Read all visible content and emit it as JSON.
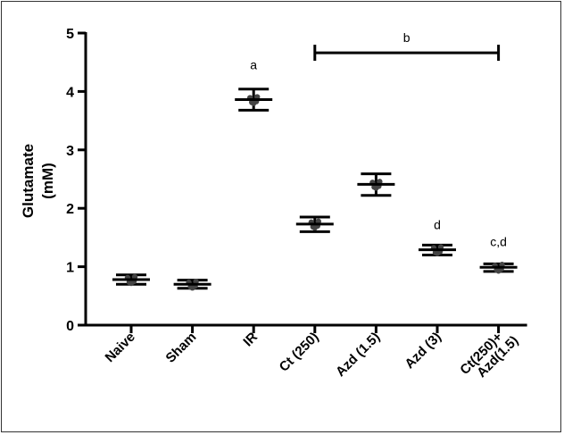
{
  "chart_data": {
    "type": "scatter",
    "title": "",
    "ylabel_lines": [
      "Glutamate",
      "(mM)"
    ],
    "xlabel": "",
    "ylim": [
      0,
      5
    ],
    "yticks": [
      0,
      1,
      2,
      3,
      4,
      5
    ],
    "grid": false,
    "legend": "none",
    "categories": [
      [
        "Naive"
      ],
      [
        "Sham"
      ],
      [
        "IR"
      ],
      [
        "Ct (250)"
      ],
      [
        "Azd (1.5)"
      ],
      [
        "Azd (3)"
      ],
      [
        "Ct(250)+",
        "Azd(1.5)"
      ]
    ],
    "series": [
      {
        "mean": [
          0.78,
          0.7,
          3.86,
          1.73,
          2.41,
          1.29,
          0.99
        ],
        "err_low": [
          0.7,
          0.63,
          3.68,
          1.6,
          2.22,
          1.2,
          0.92
        ],
        "err_high": [
          0.86,
          0.77,
          4.04,
          1.85,
          2.59,
          1.37,
          1.05
        ]
      }
    ],
    "annotations": [
      {
        "category_index": 2,
        "text": "a",
        "y": 4.38
      },
      {
        "category_index": 5,
        "text": "d",
        "y": 1.64
      },
      {
        "category_index": 6,
        "text": "c,d",
        "y": 1.35
      }
    ],
    "bracket": {
      "from_index": 3,
      "to_index": 6,
      "y": 4.8,
      "text": "b"
    },
    "colors": {
      "mark": "#000000",
      "points": "#444444"
    }
  }
}
